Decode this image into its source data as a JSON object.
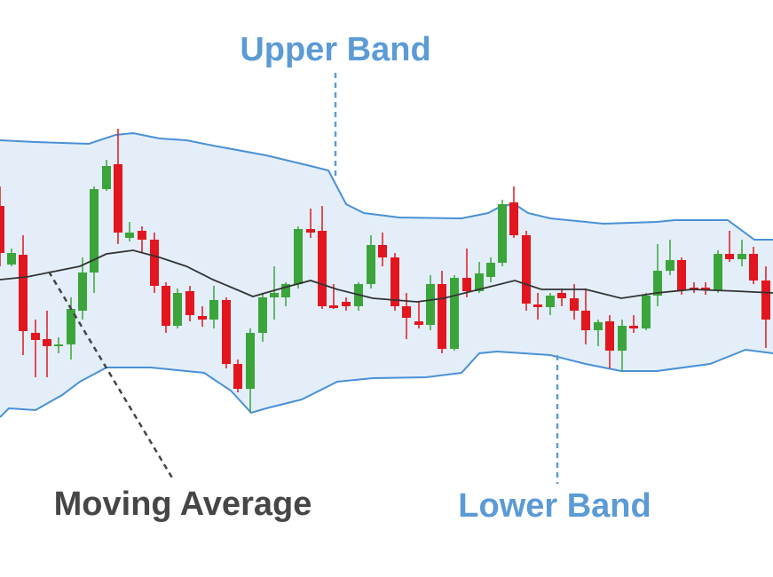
{
  "annotations": {
    "upper_band": "Upper Band",
    "moving_average": "Moving Average",
    "lower_band": "Lower Band"
  }
}
